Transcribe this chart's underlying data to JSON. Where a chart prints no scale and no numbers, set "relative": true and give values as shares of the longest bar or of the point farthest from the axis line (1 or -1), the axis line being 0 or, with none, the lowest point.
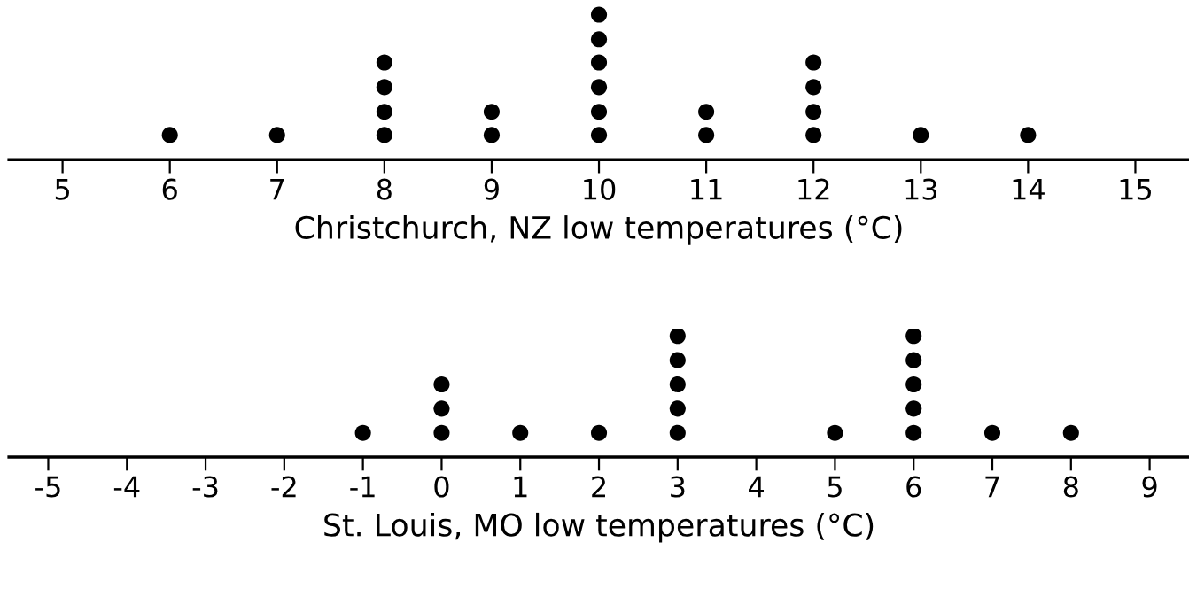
{
  "chart_data": [
    {
      "type": "scatter",
      "xlabel": "Christchurch, NZ low temperatures (°C)",
      "relative": true,
      "tick_labels": "x",
      "marker": "circle",
      "xlim": [
        4.5,
        15.5
      ],
      "xticks": [
        5,
        6,
        7,
        8,
        9,
        10,
        11,
        12,
        13,
        14,
        15
      ],
      "series": [
        {
          "color": "#000000",
          "x": [
            6,
            7,
            8,
            8,
            8,
            8,
            9,
            9,
            10,
            10,
            10,
            10,
            10,
            10,
            11,
            11,
            12,
            12,
            12,
            12,
            13,
            14
          ],
          "values": [
            0.17,
            0.17,
            0.17,
            0.33,
            0.5,
            0.67,
            0.17,
            0.33,
            0.17,
            0.33,
            0.5,
            0.67,
            0.83,
            1,
            0.17,
            0.33,
            0.17,
            0.33,
            0.5,
            0.67,
            0.17,
            0.17
          ]
        }
      ]
    },
    {
      "type": "scatter",
      "xlabel": "St. Louis, MO low temperatures (°C)",
      "relative": true,
      "tick_labels": "x",
      "marker": "circle",
      "xlim": [
        -5.5,
        9.5
      ],
      "xticks": [
        {
          "value": -5,
          "label": "-5"
        },
        {
          "value": -4,
          "label": "-4"
        },
        {
          "value": -3,
          "label": "-3"
        },
        {
          "value": -2,
          "label": "-2"
        },
        {
          "value": -1,
          "label": "-1"
        },
        0,
        1,
        2,
        3,
        4,
        5,
        6,
        7,
        8,
        9
      ],
      "series": [
        {
          "color": "#000000",
          "x": [
            -1,
            0,
            0,
            0,
            1,
            2,
            3,
            3,
            3,
            3,
            3,
            5,
            6,
            6,
            6,
            6,
            6,
            7,
            8
          ],
          "values": [
            0.2,
            0.2,
            0.4,
            0.6,
            0.2,
            0.2,
            0.2,
            0.4,
            0.6,
            0.8,
            1,
            0.2,
            0.2,
            0.4,
            0.6,
            0.8,
            1,
            0.2,
            0.2
          ]
        }
      ]
    }
  ]
}
